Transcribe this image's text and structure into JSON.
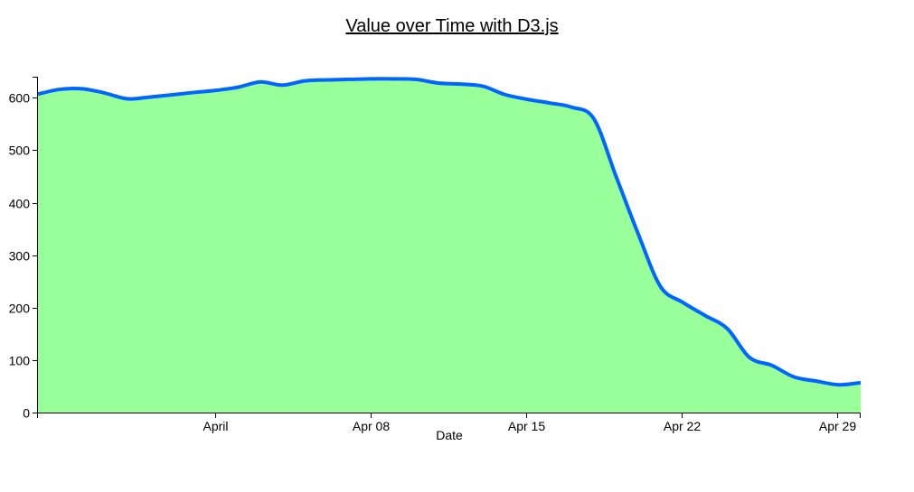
{
  "chart_data": {
    "type": "area",
    "title": "Value over Time with D3.js",
    "xlabel": "Date",
    "ylabel": "",
    "grid": false,
    "colors": {
      "area": "#99ff99",
      "line": "#0066ff"
    },
    "xlim": [
      "2020-03-24",
      "2020-04-30"
    ],
    "ylim": [
      0,
      640
    ],
    "x_ticks": [
      {
        "date": "2020-04-01",
        "label": "April"
      },
      {
        "date": "2020-04-08",
        "label": "Apr 08"
      },
      {
        "date": "2020-04-15",
        "label": "Apr 15"
      },
      {
        "date": "2020-04-22",
        "label": "Apr 22"
      },
      {
        "date": "2020-04-29",
        "label": "Apr 29"
      }
    ],
    "y_ticks": [
      0,
      100,
      200,
      300,
      400,
      500,
      600
    ],
    "series": [
      {
        "x": [
          "2020-03-24",
          "2020-03-25",
          "2020-03-26",
          "2020-03-27",
          "2020-03-28",
          "2020-03-29",
          "2020-03-31",
          "2020-04-01",
          "2020-04-02",
          "2020-04-03",
          "2020-04-04",
          "2020-04-05",
          "2020-04-06",
          "2020-04-07",
          "2020-04-08",
          "2020-04-09",
          "2020-04-10",
          "2020-04-11",
          "2020-04-12",
          "2020-04-13",
          "2020-04-14",
          "2020-04-15",
          "2020-04-16",
          "2020-04-17",
          "2020-04-18",
          "2020-04-19",
          "2020-04-20",
          "2020-04-21",
          "2020-04-22",
          "2020-04-23",
          "2020-04-24",
          "2020-04-25",
          "2020-04-26",
          "2020-04-27",
          "2020-04-28",
          "2020-04-29",
          "2020-04-30"
        ],
        "values": [
          607,
          616,
          617,
          609,
          598,
          601,
          610,
          614,
          620,
          630,
          624,
          632,
          634,
          635,
          636,
          636,
          635,
          628,
          626,
          622,
          606,
          597,
          590,
          582,
          560,
          450,
          340,
          240,
          210,
          185,
          160,
          105,
          90,
          68,
          60,
          53,
          57
        ]
      }
    ]
  }
}
